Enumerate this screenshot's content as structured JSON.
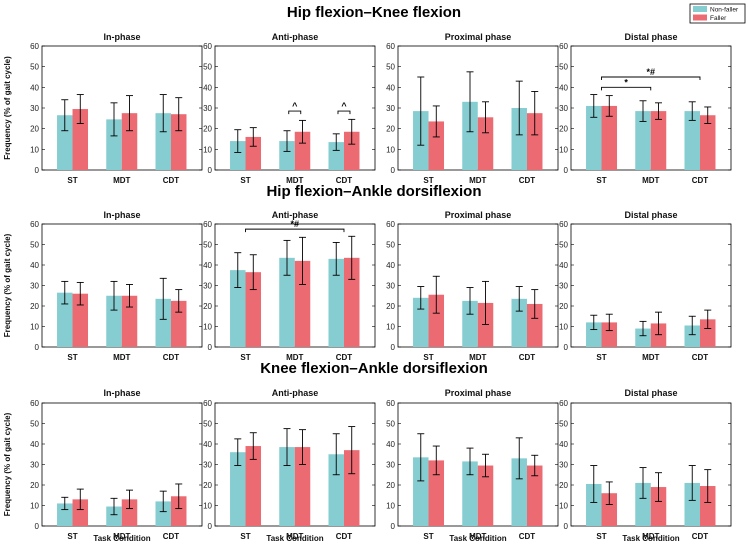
{
  "figure": {
    "legend": [
      {
        "label": "Non-faller",
        "color": "#86CDD1"
      },
      {
        "label": "Faller",
        "color": "#EC6B72"
      }
    ],
    "y_axis_label": "Frequency (% of gait cycle)",
    "x_axis_label": "Task Condition",
    "error_color": "#000000"
  },
  "chart_data": [
    {
      "row_title": "Hip flexion–Knee flexion",
      "panels": [
        {
          "type": "bar",
          "title": "In-phase",
          "categories": [
            "ST",
            "MDT",
            "CDT"
          ],
          "ylim": [
            0,
            60
          ],
          "yticks": [
            0,
            10,
            20,
            30,
            40,
            50,
            60
          ],
          "series": [
            {
              "name": "Non-faller",
              "values": [
                26.5,
                24.5,
                27.5
              ],
              "errors": [
                7.5,
                8,
                9
              ]
            },
            {
              "name": "Faller",
              "values": [
                29.5,
                27.5,
                27
              ],
              "errors": [
                7,
                8.5,
                8
              ]
            }
          ],
          "annotations": []
        },
        {
          "type": "bar",
          "title": "Anti-phase",
          "categories": [
            "ST",
            "MDT",
            "CDT"
          ],
          "ylim": [
            0,
            60
          ],
          "yticks": [
            0,
            10,
            20,
            30,
            40,
            50,
            60
          ],
          "series": [
            {
              "name": "Non-faller",
              "values": [
                14,
                14,
                13.5
              ],
              "errors": [
                5.5,
                5,
                4
              ]
            },
            {
              "name": "Faller",
              "values": [
                16,
                18.5,
                18.5
              ],
              "errors": [
                4.5,
                5.5,
                6
              ]
            }
          ],
          "annotations": [
            {
              "label": "^",
              "from": 1,
              "to": 1,
              "y": 28.5
            },
            {
              "label": "^",
              "from": 2,
              "to": 2,
              "y": 28.5
            }
          ]
        },
        {
          "type": "bar",
          "title": "Proximal phase",
          "categories": [
            "ST",
            "MDT",
            "CDT"
          ],
          "ylim": [
            0,
            60
          ],
          "yticks": [
            0,
            10,
            20,
            30,
            40,
            50,
            60
          ],
          "series": [
            {
              "name": "Non-faller",
              "values": [
                28.5,
                33,
                30
              ],
              "errors": [
                16.5,
                14.5,
                13
              ]
            },
            {
              "name": "Faller",
              "values": [
                23.5,
                25.5,
                27.5
              ],
              "errors": [
                7.5,
                7.5,
                10.5
              ]
            }
          ],
          "annotations": []
        },
        {
          "type": "bar",
          "title": "Distal phase",
          "categories": [
            "ST",
            "MDT",
            "CDT"
          ],
          "ylim": [
            0,
            60
          ],
          "yticks": [
            0,
            10,
            20,
            30,
            40,
            50,
            60
          ],
          "series": [
            {
              "name": "Non-faller",
              "values": [
                31,
                28.5,
                28.5
              ],
              "errors": [
                5.5,
                5,
                4.5
              ]
            },
            {
              "name": "Faller",
              "values": [
                31,
                28.5,
                26.5
              ],
              "errors": [
                5,
                4,
                4
              ]
            }
          ],
          "annotations": [
            {
              "label": "*#",
              "from": 0,
              "to": 2,
              "y": 45
            },
            {
              "label": "*",
              "from": 0,
              "to": 1,
              "y": 40
            }
          ]
        }
      ]
    },
    {
      "row_title": "Hip flexion–Ankle dorsiflexion",
      "panels": [
        {
          "type": "bar",
          "title": "In-phase",
          "categories": [
            "ST",
            "MDT",
            "CDT"
          ],
          "ylim": [
            0,
            60
          ],
          "yticks": [
            0,
            10,
            20,
            30,
            40,
            50,
            60
          ],
          "series": [
            {
              "name": "Non-faller",
              "values": [
                26.5,
                25,
                23.5
              ],
              "errors": [
                5.5,
                7,
                10
              ]
            },
            {
              "name": "Faller",
              "values": [
                26,
                25,
                22.5
              ],
              "errors": [
                5.5,
                5.5,
                5.5
              ]
            }
          ],
          "annotations": []
        },
        {
          "type": "bar",
          "title": "Anti-phase",
          "categories": [
            "ST",
            "MDT",
            "CDT"
          ],
          "ylim": [
            0,
            60
          ],
          "yticks": [
            0,
            10,
            20,
            30,
            40,
            50,
            60
          ],
          "series": [
            {
              "name": "Non-faller",
              "values": [
                37.5,
                43.5,
                43
              ],
              "errors": [
                8.5,
                8.5,
                8
              ]
            },
            {
              "name": "Faller",
              "values": [
                36.5,
                42,
                43.5
              ],
              "errors": [
                8.5,
                11.5,
                10.5
              ]
            }
          ],
          "annotations": [
            {
              "label": "*#",
              "from": 0,
              "to": 2,
              "y": 57.5
            }
          ]
        },
        {
          "type": "bar",
          "title": "Proximal phase",
          "categories": [
            "ST",
            "MDT",
            "CDT"
          ],
          "ylim": [
            0,
            60
          ],
          "yticks": [
            0,
            10,
            20,
            30,
            40,
            50,
            60
          ],
          "series": [
            {
              "name": "Non-faller",
              "values": [
                24,
                22.5,
                23.5
              ],
              "errors": [
                5.5,
                6.5,
                6
              ]
            },
            {
              "name": "Faller",
              "values": [
                25.5,
                21.5,
                21
              ],
              "errors": [
                9,
                10.5,
                7
              ]
            }
          ],
          "annotations": []
        },
        {
          "type": "bar",
          "title": "Distal phase",
          "categories": [
            "ST",
            "MDT",
            "CDT"
          ],
          "ylim": [
            0,
            60
          ],
          "yticks": [
            0,
            10,
            20,
            30,
            40,
            50,
            60
          ],
          "series": [
            {
              "name": "Non-faller",
              "values": [
                12,
                9,
                10.5
              ],
              "errors": [
                3.5,
                3.5,
                4.5
              ]
            },
            {
              "name": "Faller",
              "values": [
                12,
                11.5,
                13.5
              ],
              "errors": [
                4,
                5.5,
                4.5
              ]
            }
          ],
          "annotations": []
        }
      ]
    },
    {
      "row_title": "Knee flexion–Ankle dorsiflexion",
      "panels": [
        {
          "type": "bar",
          "title": "In-phase",
          "categories": [
            "ST",
            "MDT",
            "CDT"
          ],
          "ylim": [
            0,
            60
          ],
          "yticks": [
            0,
            10,
            20,
            30,
            40,
            50,
            60
          ],
          "series": [
            {
              "name": "Non-faller",
              "values": [
                11,
                9.5,
                12
              ],
              "errors": [
                3,
                4,
                5
              ]
            },
            {
              "name": "Faller",
              "values": [
                13,
                13,
                14.5
              ],
              "errors": [
                5,
                4.5,
                6
              ]
            }
          ],
          "annotations": []
        },
        {
          "type": "bar",
          "title": "Anti-phase",
          "categories": [
            "ST",
            "MDT",
            "CDT"
          ],
          "ylim": [
            0,
            60
          ],
          "yticks": [
            0,
            10,
            20,
            30,
            40,
            50,
            60
          ],
          "series": [
            {
              "name": "Non-faller",
              "values": [
                36,
                38.5,
                35
              ],
              "errors": [
                6.5,
                9,
                10
              ]
            },
            {
              "name": "Faller",
              "values": [
                39,
                38.5,
                37
              ],
              "errors": [
                6.5,
                8.5,
                11.5
              ]
            }
          ],
          "annotations": []
        },
        {
          "type": "bar",
          "title": "Proximal phase",
          "categories": [
            "ST",
            "MDT",
            "CDT"
          ],
          "ylim": [
            0,
            60
          ],
          "yticks": [
            0,
            10,
            20,
            30,
            40,
            50,
            60
          ],
          "series": [
            {
              "name": "Non-faller",
              "values": [
                33.5,
                31.5,
                33
              ],
              "errors": [
                11.5,
                6.5,
                10
              ]
            },
            {
              "name": "Faller",
              "values": [
                32,
                29.5,
                29.5
              ],
              "errors": [
                7,
                5.5,
                5
              ]
            }
          ],
          "annotations": []
        },
        {
          "type": "bar",
          "title": "Distal phase",
          "categories": [
            "ST",
            "MDT",
            "CDT"
          ],
          "ylim": [
            0,
            60
          ],
          "yticks": [
            0,
            10,
            20,
            30,
            40,
            50,
            60
          ],
          "series": [
            {
              "name": "Non-faller",
              "values": [
                20.5,
                21,
                21
              ],
              "errors": [
                9,
                7.5,
                8.5
              ]
            },
            {
              "name": "Faller",
              "values": [
                16,
                19,
                19.5
              ],
              "errors": [
                5.5,
                7,
                8
              ]
            }
          ],
          "annotations": []
        }
      ]
    }
  ]
}
